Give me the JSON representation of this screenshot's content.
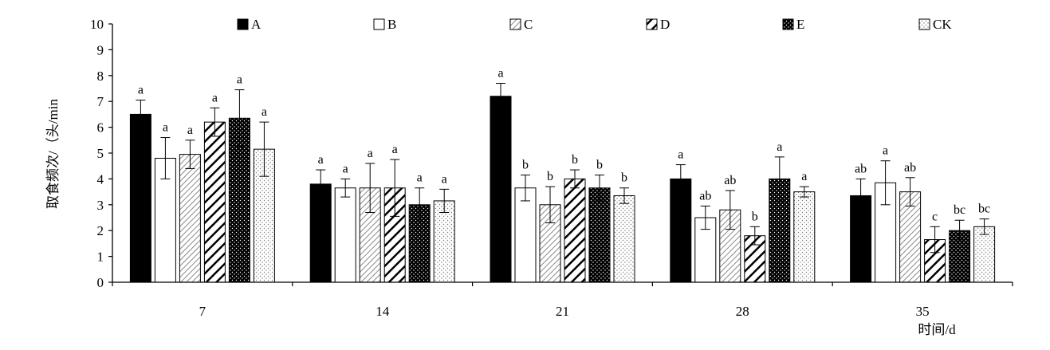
{
  "chart_data": {
    "type": "bar",
    "ylabel": "取食频次/（头/min",
    "xlabel": "时间/d",
    "ylim": [
      0,
      10
    ],
    "yticks": [
      "0",
      "1",
      "2",
      "3",
      "4",
      "5",
      "6",
      "7",
      "8",
      "9",
      "10"
    ],
    "categories": [
      "7",
      "14",
      "21",
      "28",
      "35"
    ],
    "legend_position": "top",
    "series": [
      {
        "name": "A",
        "pattern": "solid-black",
        "values": [
          6.5,
          3.8,
          7.2,
          4.0,
          3.35
        ],
        "errors": [
          0.55,
          0.55,
          0.5,
          0.55,
          0.65
        ],
        "labels": [
          "a",
          "a",
          "a",
          "a",
          "ab"
        ]
      },
      {
        "name": "B",
        "pattern": "white",
        "values": [
          4.8,
          3.65,
          3.65,
          2.5,
          3.85
        ],
        "errors": [
          0.8,
          0.35,
          0.5,
          0.45,
          0.85
        ],
        "labels": [
          "a",
          "a",
          "b",
          "ab",
          "a"
        ]
      },
      {
        "name": "C",
        "pattern": "light-diagonal",
        "values": [
          4.95,
          3.65,
          3.0,
          2.8,
          3.5
        ],
        "errors": [
          0.55,
          0.95,
          0.7,
          0.75,
          0.55
        ],
        "labels": [
          "a",
          "a",
          "b",
          "ab",
          "ab"
        ]
      },
      {
        "name": "D",
        "pattern": "wide-diagonal",
        "values": [
          6.2,
          3.65,
          4.0,
          1.8,
          1.65
        ],
        "errors": [
          0.55,
          1.1,
          0.35,
          0.35,
          0.5
        ],
        "labels": [
          "a",
          "a",
          "b",
          "b",
          "c"
        ]
      },
      {
        "name": "E",
        "pattern": "dotted-black",
        "values": [
          6.35,
          3.0,
          3.65,
          4.0,
          2.0
        ],
        "errors": [
          1.1,
          0.65,
          0.5,
          0.85,
          0.4
        ],
        "labels": [
          "a",
          "a",
          "b",
          "a",
          "bc"
        ]
      },
      {
        "name": "CK",
        "pattern": "dotted-white",
        "values": [
          5.15,
          3.15,
          3.35,
          3.5,
          2.15
        ],
        "errors": [
          1.05,
          0.45,
          0.3,
          0.2,
          0.3
        ],
        "labels": [
          "a",
          "a",
          "b",
          "a",
          "bc"
        ]
      }
    ]
  }
}
